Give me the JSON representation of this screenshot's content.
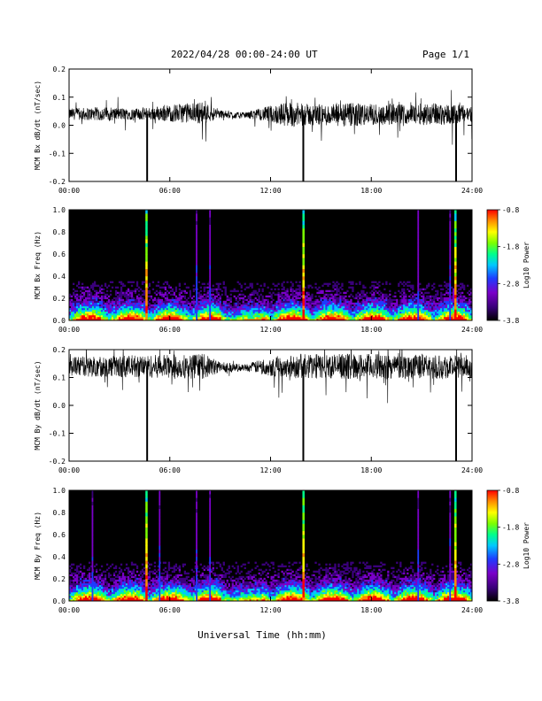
{
  "header": {
    "title": "2022/04/28  00:00-24:00 UT",
    "page": "Page 1/1"
  },
  "footer": {
    "xlabel": "Universal Time (hh:mm)"
  },
  "colors": {
    "trace": "#000000",
    "spectrogram_background": "#000000",
    "colormap": [
      "#000000",
      "#3a007a",
      "#7a00c8",
      "#1e3cff",
      "#00c8ff",
      "#00ff8c",
      "#7cff00",
      "#ffff00",
      "#ff8c00",
      "#ff0000"
    ]
  },
  "chart_data": [
    {
      "type": "line",
      "ylabel": "MCM Bx dB/dt (nT/sec)",
      "xlim": [
        0,
        24
      ],
      "ylim": [
        -0.2,
        0.2
      ],
      "xticks": [
        "00:00",
        "06:00",
        "12:00",
        "18:00",
        "24:00"
      ],
      "yticks": [
        "-0.2",
        "-0.1",
        "0.0",
        "0.1",
        "0.2"
      ],
      "ytick_values": [
        -0.2,
        -0.1,
        0.0,
        0.1,
        0.2
      ],
      "baseline": [
        [
          0,
          0.04
        ],
        [
          4,
          0.04
        ],
        [
          8,
          0.045
        ],
        [
          10,
          0.035
        ],
        [
          12,
          0.04
        ],
        [
          16,
          0.035
        ],
        [
          20,
          0.04
        ],
        [
          24,
          0.04
        ]
      ],
      "noise_amplitude": [
        [
          0,
          0.02
        ],
        [
          2,
          0.025
        ],
        [
          4,
          0.02
        ],
        [
          6,
          0.03
        ],
        [
          8,
          0.04
        ],
        [
          9,
          0.015
        ],
        [
          10.5,
          0.01
        ],
        [
          12,
          0.03
        ],
        [
          13,
          0.045
        ],
        [
          15,
          0.035
        ],
        [
          16,
          0.045
        ],
        [
          18,
          0.04
        ],
        [
          20,
          0.035
        ],
        [
          22,
          0.04
        ],
        [
          24,
          0.03
        ]
      ],
      "spikes": [
        {
          "x": 4.65,
          "y": -0.2
        },
        {
          "x": 13.95,
          "y": -0.2
        },
        {
          "x": 23.05,
          "y": -0.2
        }
      ]
    },
    {
      "type": "heatmap",
      "ylabel": "MCM Bx Freq (Hz)",
      "colorbar_label": "Log10 Power",
      "colorbar_ticks": [
        "-0.8",
        "-1.8",
        "-2.8",
        "-3.8"
      ],
      "colorbar_range": [
        -3.8,
        -0.8
      ],
      "xlim": [
        0,
        24
      ],
      "ylim": [
        0,
        1.0
      ],
      "xticks": [
        "00:00",
        "06:00",
        "12:00",
        "18:00",
        "24:00"
      ],
      "yticks": [
        "0.0",
        "0.2",
        "0.4",
        "0.6",
        "0.8",
        "1.0"
      ],
      "ytick_values": [
        0,
        0.2,
        0.4,
        0.6,
        0.8,
        1.0
      ],
      "streaks": [
        4.6,
        7.6,
        8.4,
        13.95,
        20.8,
        22.7,
        23.0
      ]
    },
    {
      "type": "line",
      "ylabel": "MCM By dB/dt (nT/sec)",
      "xlim": [
        0,
        24
      ],
      "ylim": [
        -0.2,
        0.2
      ],
      "xticks": [
        "00:00",
        "06:00",
        "12:00",
        "18:00",
        "24:00"
      ],
      "yticks": [
        "-0.2",
        "-0.1",
        "0.0",
        "0.1",
        "0.2"
      ],
      "ytick_values": [
        -0.2,
        -0.1,
        0.0,
        0.1,
        0.2
      ],
      "baseline": [
        [
          0,
          0.14
        ],
        [
          4,
          0.14
        ],
        [
          8,
          0.14
        ],
        [
          10,
          0.135
        ],
        [
          12,
          0.14
        ],
        [
          16,
          0.14
        ],
        [
          20,
          0.14
        ],
        [
          24,
          0.14
        ]
      ],
      "noise_amplitude": [
        [
          0,
          0.035
        ],
        [
          4,
          0.04
        ],
        [
          8,
          0.045
        ],
        [
          9,
          0.02
        ],
        [
          10.5,
          0.012
        ],
        [
          12,
          0.035
        ],
        [
          14,
          0.045
        ],
        [
          18,
          0.045
        ],
        [
          22,
          0.045
        ],
        [
          24,
          0.04
        ]
      ],
      "spikes": [
        {
          "x": 4.65,
          "y": -0.2
        },
        {
          "x": 13.95,
          "y": -0.2
        },
        {
          "x": 23.05,
          "y": -0.2
        }
      ]
    },
    {
      "type": "heatmap",
      "ylabel": "MCM By Freq (Hz)",
      "colorbar_label": "Log10 Power",
      "colorbar_ticks": [
        "-0.8",
        "-1.8",
        "-2.8",
        "-3.8"
      ],
      "colorbar_range": [
        -3.8,
        -0.8
      ],
      "xlim": [
        0,
        24
      ],
      "ylim": [
        0,
        1.0
      ],
      "xticks": [
        "00:00",
        "06:00",
        "12:00",
        "18:00",
        "24:00"
      ],
      "yticks": [
        "0.0",
        "0.2",
        "0.4",
        "0.6",
        "0.8",
        "1.0"
      ],
      "ytick_values": [
        0,
        0.2,
        0.4,
        0.6,
        0.8,
        1.0
      ],
      "streaks": [
        1.4,
        4.6,
        5.4,
        7.6,
        8.4,
        13.95,
        20.8,
        22.7,
        23.0
      ]
    }
  ]
}
